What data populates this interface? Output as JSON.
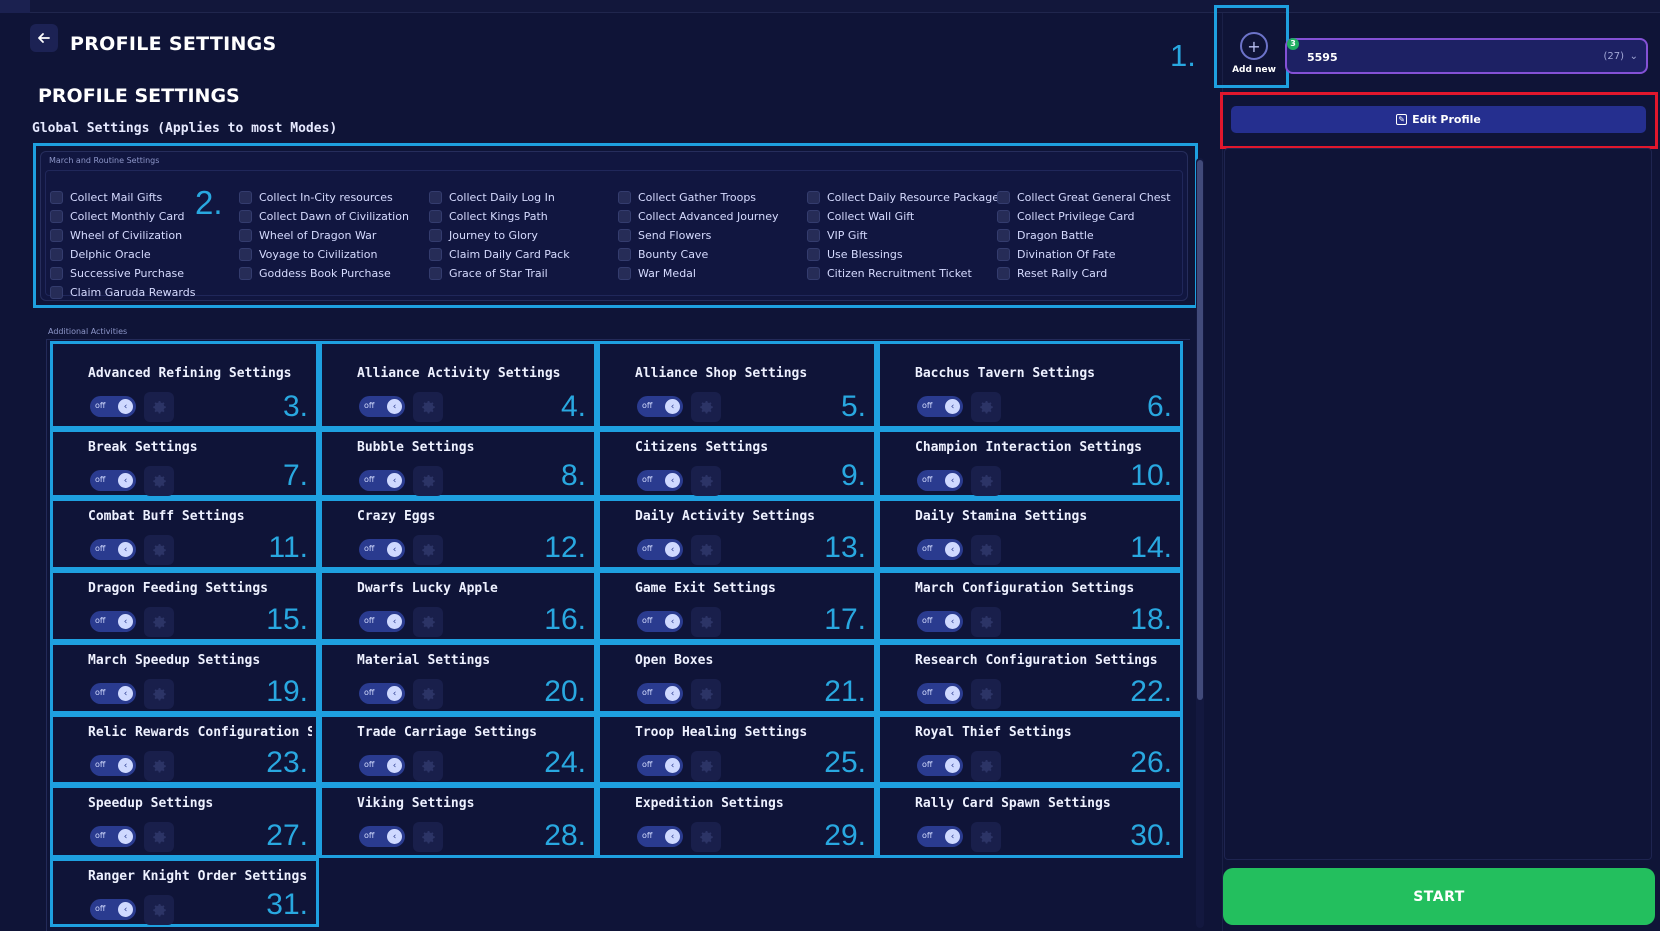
{
  "header": {
    "title": "PROFILE SETTINGS",
    "back_icon": "arrow-left-icon"
  },
  "section_title": "PROFILE SETTINGS",
  "global_title": "Global Settings (Applies to most Modes)",
  "routine": {
    "legend": "March and Routine Settings",
    "columns": [
      [
        "Collect Mail Gifts",
        "Collect Monthly Card",
        "Wheel of Civilization",
        "Delphic Oracle",
        "Successive Purchase",
        "Claim Garuda Rewards"
      ],
      [
        "Collect In-City resources",
        "Collect Dawn of Civilization",
        "Wheel of Dragon War",
        "Voyage to Civilization",
        "Goddess Book Purchase"
      ],
      [
        "Collect Daily Log In",
        "Collect Kings Path",
        "Journey to Glory",
        "Claim Daily Card Pack",
        "Grace of Star Trail"
      ],
      [
        "Collect Gather Troops",
        "Collect Advanced Journey",
        "Send Flowers",
        "Bounty Cave",
        "War Medal"
      ],
      [
        "Collect Daily Resource Package",
        "Collect Wall Gift",
        "VIP Gift",
        "Use Blessings",
        "Citizen Recruitment Ticket"
      ],
      [
        "Collect Great General Chest",
        "Collect Privilege Card",
        "Dragon Battle",
        "Divination Of Fate",
        "Reset Rally Card"
      ]
    ]
  },
  "additional": {
    "legend": "Additional Activities",
    "toggle_label": "off",
    "cards": [
      {
        "title": "Advanced Refining Settings",
        "num": "3."
      },
      {
        "title": "Alliance Activity Settings",
        "num": "4."
      },
      {
        "title": "Alliance Shop Settings",
        "num": "5."
      },
      {
        "title": "Bacchus Tavern Settings",
        "num": "6."
      },
      {
        "title": "Break Settings",
        "num": "7."
      },
      {
        "title": "Bubble Settings",
        "num": "8."
      },
      {
        "title": "Citizens Settings",
        "num": "9."
      },
      {
        "title": "Champion Interaction Settings",
        "num": "10."
      },
      {
        "title": "Combat Buff Settings",
        "num": "11."
      },
      {
        "title": "Crazy Eggs",
        "num": "12."
      },
      {
        "title": "Daily Activity Settings",
        "num": "13."
      },
      {
        "title": "Daily Stamina Settings",
        "num": "14."
      },
      {
        "title": "Dragon Feeding Settings",
        "num": "15."
      },
      {
        "title": "Dwarfs Lucky Apple",
        "num": "16."
      },
      {
        "title": "Game Exit Settings",
        "num": "17."
      },
      {
        "title": "March Configuration Settings",
        "num": "18."
      },
      {
        "title": "March Speedup Settings",
        "num": "19."
      },
      {
        "title": "Material Settings",
        "num": "20."
      },
      {
        "title": "Open Boxes",
        "num": "21."
      },
      {
        "title": "Research Configuration Settings",
        "num": "22."
      },
      {
        "title": "Relic Rewards Configuration Settings",
        "num": "23."
      },
      {
        "title": "Trade Carriage Settings",
        "num": "24."
      },
      {
        "title": "Troop Healing Settings",
        "num": "25."
      },
      {
        "title": "Royal Thief Settings",
        "num": "26."
      },
      {
        "title": "Speedup Settings",
        "num": "27."
      },
      {
        "title": "Viking Settings",
        "num": "28."
      },
      {
        "title": "Expedition Settings",
        "num": "29."
      },
      {
        "title": "Rally Card Spawn Settings",
        "num": "30."
      },
      {
        "title": "Ranger Knight Order Settings",
        "num": "31."
      }
    ]
  },
  "annotations": {
    "one": "1.",
    "two": "2."
  },
  "right": {
    "add_new": "Add new",
    "add_icon": "plus-icon",
    "profile_name": "5595",
    "profile_count": "(27)",
    "badge": "3",
    "edit_profile": "Edit Profile",
    "start": "START"
  },
  "colors": {
    "accent_blue": "#1ea0e0",
    "highlight_red": "#e1172d",
    "start_green": "#23bf5e",
    "background": "#0f1437"
  }
}
